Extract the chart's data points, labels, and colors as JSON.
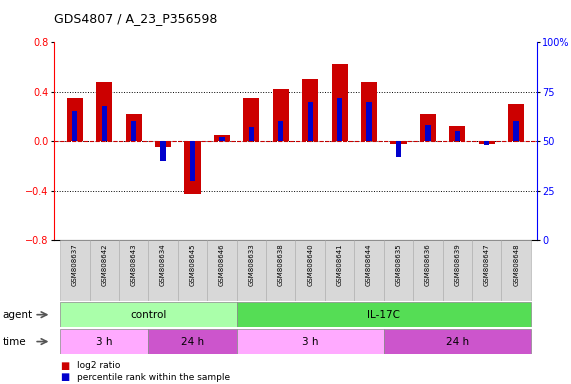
{
  "title": "GDS4807 / A_23_P356598",
  "samples": [
    "GSM808637",
    "GSM808642",
    "GSM808643",
    "GSM808634",
    "GSM808645",
    "GSM808646",
    "GSM808633",
    "GSM808638",
    "GSM808640",
    "GSM808641",
    "GSM808644",
    "GSM808635",
    "GSM808636",
    "GSM808639",
    "GSM808647",
    "GSM808648"
  ],
  "log2_ratio": [
    0.35,
    0.48,
    0.22,
    -0.05,
    -0.43,
    0.05,
    0.35,
    0.42,
    0.5,
    0.62,
    0.48,
    -0.02,
    0.22,
    0.12,
    -0.02,
    0.3
  ],
  "pct_rank": [
    65,
    68,
    60,
    40,
    30,
    52,
    57,
    60,
    70,
    72,
    70,
    42,
    58,
    55,
    48,
    60
  ],
  "bar_color_red": "#cc0000",
  "bar_color_blue": "#0000cc",
  "ylim_left": [
    -0.8,
    0.8
  ],
  "ylim_right": [
    0,
    100
  ],
  "yticks_left": [
    -0.8,
    -0.4,
    0.0,
    0.4,
    0.8
  ],
  "yticks_right": [
    0,
    25,
    50,
    75,
    100
  ],
  "ytick_labels_right": [
    "0",
    "25",
    "50",
    "75",
    "100%"
  ],
  "agent_groups": [
    {
      "label": "control",
      "start": 0,
      "end": 6,
      "color": "#aaffaa"
    },
    {
      "label": "IL-17C",
      "start": 6,
      "end": 16,
      "color": "#55dd55"
    }
  ],
  "time_groups": [
    {
      "label": "3 h",
      "start": 0,
      "end": 3,
      "color": "#ffaaff"
    },
    {
      "label": "24 h",
      "start": 3,
      "end": 6,
      "color": "#cc55cc"
    },
    {
      "label": "3 h",
      "start": 6,
      "end": 11,
      "color": "#ffaaff"
    },
    {
      "label": "24 h",
      "start": 11,
      "end": 16,
      "color": "#cc55cc"
    }
  ],
  "bar_width": 0.55,
  "blue_bar_width": 0.18,
  "background_color": "#ffffff",
  "zero_line_color": "#cc0000",
  "label_agent": "agent",
  "label_time": "time",
  "legend_red": "log2 ratio",
  "legend_blue": "percentile rank within the sample",
  "cell_color": "#d8d8d8",
  "cell_edge_color": "#aaaaaa"
}
